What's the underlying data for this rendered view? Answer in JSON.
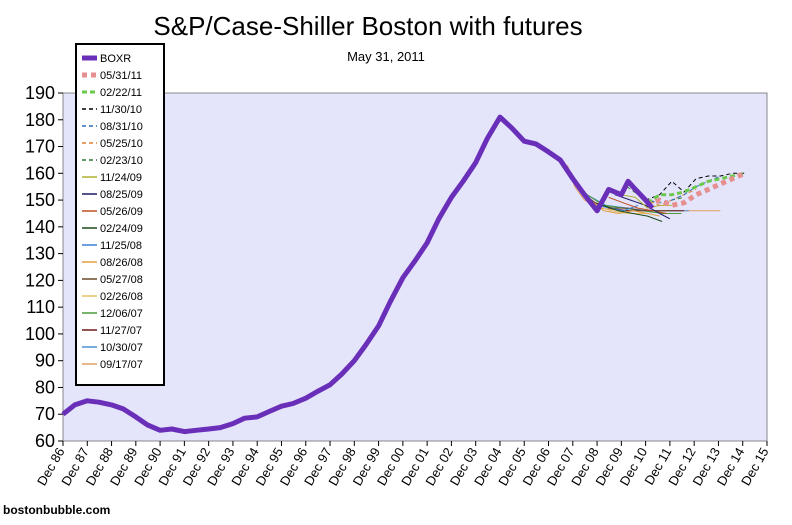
{
  "chart_data": {
    "type": "line",
    "title": "S&P/Case-Shiller Boston with futures",
    "subtitle": "May 31, 2011",
    "credit": "bostonbubble.com",
    "xlabel": "",
    "ylabel": "",
    "ylim": [
      60,
      190
    ],
    "yticks": [
      60,
      70,
      80,
      90,
      100,
      110,
      120,
      130,
      140,
      150,
      160,
      170,
      180,
      190
    ],
    "xticks": [
      "Dec 86",
      "Dec 87",
      "Dec 88",
      "Dec 89",
      "Dec 90",
      "Dec 91",
      "Dec 92",
      "Dec 93",
      "Dec 94",
      "Dec 95",
      "Dec 96",
      "Dec 97",
      "Dec 98",
      "Dec 99",
      "Dec 00",
      "Dec 01",
      "Dec 02",
      "Dec 03",
      "Dec 04",
      "Dec 05",
      "Dec 06",
      "Dec 07",
      "Dec 08",
      "Dec 09",
      "Dec 10",
      "Dec 11",
      "Dec 12",
      "Dec 13",
      "Dec 14",
      "Dec 15"
    ],
    "grid": false,
    "legend_position": "top-left",
    "series": [
      {
        "name": "BOXR",
        "color": "#6a2fb8",
        "style": "solid",
        "width": 5,
        "x": [
          1986.92,
          1987.4,
          1987.92,
          1988.4,
          1988.92,
          1989.4,
          1989.92,
          1990.4,
          1990.92,
          1991.4,
          1991.92,
          1992.4,
          1992.92,
          1993.4,
          1993.92,
          1994.4,
          1994.92,
          1995.4,
          1995.92,
          1996.4,
          1996.92,
          1997.4,
          1997.92,
          1998.4,
          1998.92,
          1999.4,
          1999.92,
          2000.4,
          2000.92,
          2001.4,
          2001.92,
          2002.4,
          2002.92,
          2003.4,
          2003.92,
          2004.4,
          2004.92,
          2005.4,
          2005.92,
          2006.4,
          2006.92,
          2007.4,
          2007.92,
          2008.4,
          2008.92,
          2009.4,
          2009.92,
          2010.2,
          2010.5,
          2010.92,
          2011.2
        ],
        "values": [
          70,
          73.5,
          75,
          74.5,
          73.5,
          72,
          69,
          66,
          64,
          64.5,
          63.5,
          64,
          64.5,
          65,
          66.5,
          68.5,
          69,
          71,
          73,
          74,
          76,
          78.5,
          81,
          85,
          90,
          96,
          103,
          112,
          121,
          127,
          134,
          143,
          151,
          157,
          164,
          173,
          181,
          177,
          172,
          171,
          168,
          165,
          158,
          152,
          146,
          154,
          152,
          157,
          154,
          150,
          147
        ]
      },
      {
        "name": "05/31/11",
        "color": "#e58f8f",
        "style": "square",
        "width": 5,
        "x": [
          2011.0,
          2011.5,
          2012.0,
          2012.5,
          2013.0,
          2013.5,
          2014.0,
          2014.5,
          2015.0
        ],
        "values": [
          148,
          150,
          148,
          149,
          152,
          154,
          156,
          158,
          160
        ]
      },
      {
        "name": "02/22/11",
        "color": "#6cc84a",
        "style": "dash-dot",
        "width": 3,
        "x": [
          2011.0,
          2011.5,
          2012.0,
          2012.5,
          2013.0,
          2013.5,
          2014.0,
          2014.5,
          2015.0
        ],
        "values": [
          149,
          152,
          152,
          153,
          155,
          157,
          158,
          159,
          160
        ]
      },
      {
        "name": "11/30/10",
        "color": "#000000",
        "style": "dashed",
        "width": 1,
        "x": [
          2010.92,
          2011.5,
          2012.0,
          2012.5,
          2013.0,
          2013.5,
          2014.0,
          2014.5,
          2015.0
        ],
        "values": [
          150,
          152,
          157,
          153,
          158,
          159,
          159,
          160,
          160
        ]
      },
      {
        "name": "08/31/10",
        "color": "#2a6fbd",
        "style": "dashed",
        "width": 1,
        "x": [
          2010.6,
          2011.0,
          2011.5,
          2012.0,
          2012.5,
          2013.0,
          2013.5,
          2014.0
        ],
        "values": [
          152,
          150,
          149,
          150,
          152,
          155,
          157,
          159
        ]
      },
      {
        "name": "05/25/10",
        "color": "#e08030",
        "style": "dashed",
        "width": 1,
        "x": [
          2010.4,
          2011.0,
          2011.5,
          2012.0,
          2012.5,
          2013.0
        ],
        "values": [
          154,
          150,
          148,
          150,
          152,
          154
        ]
      },
      {
        "name": "02/23/10",
        "color": "#2f7a2f",
        "style": "dashed",
        "width": 1,
        "x": [
          2010.15,
          2010.92,
          2011.5,
          2012.0,
          2012.5
        ],
        "values": [
          155,
          150,
          149,
          150,
          151
        ]
      },
      {
        "name": "11/24/09",
        "color": "#b0b030",
        "style": "solid",
        "width": 1,
        "x": [
          2009.9,
          2010.5,
          2011.0,
          2011.5,
          2012.0
        ],
        "values": [
          152,
          151,
          147,
          148,
          148
        ]
      },
      {
        "name": "08/25/09",
        "color": "#1a1a66",
        "style": "solid",
        "width": 1,
        "x": [
          2009.65,
          2010.3,
          2010.92,
          2011.5,
          2011.92
        ],
        "values": [
          152,
          150,
          148,
          145,
          143
        ]
      },
      {
        "name": "05/26/09",
        "color": "#c05020",
        "style": "solid",
        "width": 1,
        "x": [
          2009.4,
          2010.0,
          2010.6,
          2011.2,
          2011.8
        ],
        "values": [
          151,
          149,
          147,
          146,
          145
        ]
      },
      {
        "name": "02/24/09",
        "color": "#1a4a1a",
        "style": "solid",
        "width": 1,
        "x": [
          2009.15,
          2009.8,
          2010.4,
          2011.0,
          2011.6
        ],
        "values": [
          148,
          146,
          145,
          144,
          142
        ]
      },
      {
        "name": "11/25/08",
        "color": "#3a7fd0",
        "style": "solid",
        "width": 1,
        "x": [
          2008.9,
          2009.5,
          2010.0,
          2010.6
        ],
        "values": [
          148,
          147,
          146,
          148
        ]
      },
      {
        "name": "08/26/08",
        "color": "#e0a040",
        "style": "solid",
        "width": 1,
        "x": [
          2008.65,
          2009.2,
          2009.8,
          2010.4,
          2011.0,
          2011.5
        ],
        "values": [
          150,
          146,
          145,
          146,
          145,
          144
        ]
      },
      {
        "name": "05/27/08",
        "color": "#6b4a2a",
        "style": "solid",
        "width": 1,
        "x": [
          2008.4,
          2009.0,
          2009.6,
          2010.2,
          2010.8,
          2011.4,
          2012.0
        ],
        "values": [
          152,
          148,
          147,
          147,
          146,
          146,
          146
        ]
      },
      {
        "name": "02/26/08",
        "color": "#e8c060",
        "style": "solid",
        "width": 1,
        "x": [
          2008.15,
          2008.8,
          2009.5,
          2010.2,
          2011.0
        ],
        "values": [
          154,
          148,
          146,
          145,
          145
        ]
      },
      {
        "name": "12/06/07",
        "color": "#4a9a3a",
        "style": "solid",
        "width": 1,
        "x": [
          2007.92,
          2008.5,
          2009.2,
          2010.0,
          2010.8,
          2011.6,
          2012.4
        ],
        "values": [
          158,
          152,
          148,
          147,
          146,
          145,
          145
        ]
      },
      {
        "name": "11/27/07",
        "color": "#6a1a1a",
        "style": "solid",
        "width": 1,
        "x": [
          2007.9,
          2008.6,
          2009.4,
          2010.2,
          2011.0,
          2011.8,
          2012.5
        ],
        "values": [
          158,
          150,
          147,
          146,
          146,
          146,
          146
        ]
      },
      {
        "name": "10/30/07",
        "color": "#4a90d0",
        "style": "solid",
        "width": 1,
        "x": [
          2007.8,
          2008.5,
          2009.3,
          2010.2,
          2011.0,
          2011.8,
          2012.7
        ],
        "values": [
          160,
          152,
          148,
          147,
          146,
          146,
          146
        ]
      },
      {
        "name": "09/17/07",
        "color": "#e0a060",
        "style": "solid",
        "width": 1,
        "x": [
          2007.7,
          2008.0,
          2008.4,
          2009.0,
          2010.0,
          2011.0,
          2012.0,
          2013.0,
          2014.0
        ],
        "values": [
          163,
          155,
          150,
          147,
          146,
          146,
          146,
          146,
          146
        ]
      }
    ]
  }
}
